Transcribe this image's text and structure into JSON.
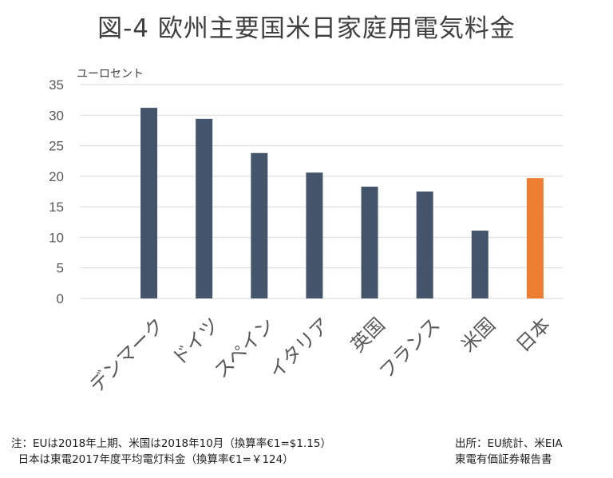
{
  "chart_data": {
    "type": "bar",
    "title": "図-4 欧州主要国米日家庭用電気料金",
    "ylabel": "ユーロセント",
    "categories": [
      "デンマーク",
      "ドイツ",
      "スペイン",
      "イタリア",
      "英国",
      "フランス",
      "米国",
      "日本"
    ],
    "values": [
      31.2,
      29.4,
      23.8,
      20.6,
      18.3,
      17.5,
      11.1,
      19.7
    ],
    "colors": [
      "#44546A",
      "#44546A",
      "#44546A",
      "#44546A",
      "#44546A",
      "#44546A",
      "#44546A",
      "#ED7D31"
    ],
    "ylim": [
      0,
      35
    ],
    "yticks": [
      0,
      5,
      10,
      15,
      20,
      25,
      30,
      35
    ],
    "grid": true,
    "legend": "none"
  },
  "notes": {
    "left_line1": "注：EUは2018年上期、米国は2018年10月（換算率€1=$1.15）",
    "left_line2": "日本は東電2017年度平均電灯料金（換算率€1=￥124）",
    "right_line1": "出所：EU統計、米EIA",
    "right_line2": "東電有価証券報告書"
  }
}
